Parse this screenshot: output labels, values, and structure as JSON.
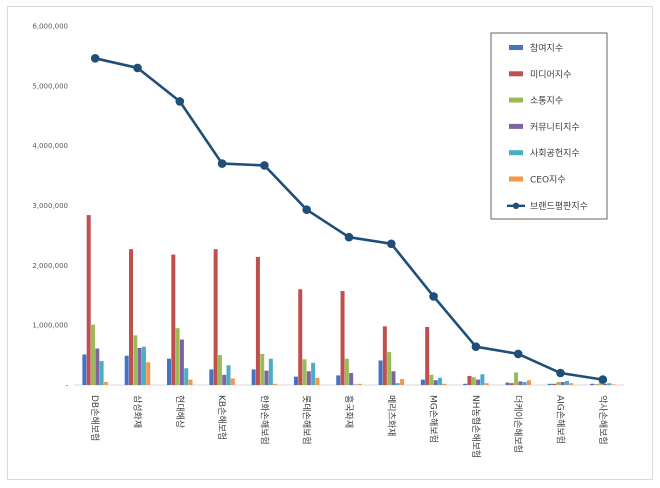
{
  "chart_data": {
    "type": "bar",
    "title": "",
    "xlabel": "",
    "ylabel": "",
    "ylim": [
      0,
      6000000
    ],
    "yticks": [
      0,
      1000000,
      2000000,
      3000000,
      4000000,
      5000000,
      6000000
    ],
    "ytick_labels": [
      "-",
      "1,000,000",
      "2,000,000",
      "3,000,000",
      "4,000,000",
      "5,000,000",
      "6,000,000"
    ],
    "categories": [
      "DB손해보험",
      "삼성화재",
      "현대해상",
      "KB손해보험",
      "한화손해보험",
      "롯데손해보험",
      "흥국화재",
      "메리츠화재",
      "MG손해보험",
      "NH농협손해보험",
      "더케이손해보험",
      "AIG손해보험",
      "악사손해보험"
    ],
    "category_labels": [
      "DB손해보험",
      "삼성화재",
      "현대해상",
      "KB손해보험",
      "한화손해보험",
      "롯데손해보험",
      "흥국화재",
      "메리츠화재",
      "MG손해보험",
      "NH농협손해보험",
      "더케이손해보험",
      "AIG손해보험",
      "악사손해보험"
    ],
    "legend_position": "top-right",
    "series": [
      {
        "name": "참여지수",
        "kind": "bar",
        "color": "#4472c4",
        "values": [
          510000,
          490000,
          440000,
          260000,
          260000,
          140000,
          160000,
          410000,
          90000,
          20000,
          40000,
          20000,
          20000
        ]
      },
      {
        "name": "미디어지수",
        "kind": "bar",
        "color": "#c0504d",
        "values": [
          2840000,
          2270000,
          2180000,
          2270000,
          2140000,
          1600000,
          1570000,
          980000,
          970000,
          150000,
          30000,
          20000,
          10000
        ]
      },
      {
        "name": "소통지수",
        "kind": "bar",
        "color": "#9bbb59",
        "values": [
          1010000,
          830000,
          950000,
          500000,
          520000,
          430000,
          440000,
          550000,
          170000,
          130000,
          210000,
          50000,
          40000
        ]
      },
      {
        "name": "커뮤니티지수",
        "kind": "bar",
        "color": "#8064a2",
        "values": [
          610000,
          620000,
          760000,
          170000,
          240000,
          230000,
          200000,
          230000,
          80000,
          90000,
          60000,
          50000,
          20000
        ]
      },
      {
        "name": "사회공헌지수",
        "kind": "bar",
        "color": "#4bacc6",
        "values": [
          400000,
          640000,
          280000,
          330000,
          440000,
          370000,
          10000,
          30000,
          120000,
          180000,
          50000,
          70000,
          30000
        ]
      },
      {
        "name": "CEO지수",
        "kind": "bar",
        "color": "#f79646",
        "values": [
          50000,
          380000,
          90000,
          110000,
          20000,
          120000,
          20000,
          100000,
          20000,
          30000,
          80000,
          30000,
          10000
        ]
      },
      {
        "name": "브랜드평판지수",
        "kind": "line",
        "color": "#1f4e79",
        "values": [
          5460000,
          5300000,
          4740000,
          3700000,
          3670000,
          2930000,
          2470000,
          2360000,
          1480000,
          640000,
          520000,
          200000,
          90000
        ]
      }
    ]
  }
}
